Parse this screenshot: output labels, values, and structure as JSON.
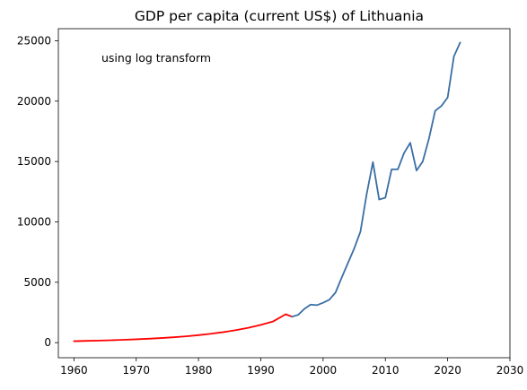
{
  "chart_data": {
    "type": "line",
    "title": "GDP per capita (current US$) of Lithuania",
    "annotation": "using log transform",
    "xlabel": "",
    "ylabel": "",
    "xlim": [
      1957.5,
      2030
    ],
    "ylim": [
      -1250,
      26000
    ],
    "x_ticks": [
      1960,
      1970,
      1980,
      1990,
      2000,
      2010,
      2020,
      2030
    ],
    "y_ticks": [
      0,
      5000,
      10000,
      15000,
      20000,
      25000
    ],
    "grid": false,
    "series": [
      {
        "role": "estimated",
        "color": "#ff0000",
        "x": [
          1960,
          1962,
          1964,
          1966,
          1968,
          1970,
          1972,
          1974,
          1976,
          1978,
          1980,
          1982,
          1984,
          1986,
          1988,
          1990,
          1992,
          1994,
          1995
        ],
        "y": [
          120,
          145,
          170,
          200,
          235,
          275,
          325,
          380,
          445,
          525,
          620,
          735,
          870,
          1030,
          1230,
          1470,
          1760,
          2350,
          2150
        ]
      },
      {
        "role": "actual",
        "color": "#3a6ea5",
        "x": [
          1995,
          1996,
          1997,
          1998,
          1999,
          2000,
          2001,
          2002,
          2003,
          2004,
          2005,
          2006,
          2007,
          2008,
          2009,
          2010,
          2011,
          2012,
          2013,
          2014,
          2015,
          2016,
          2017,
          2018,
          2019,
          2020,
          2021,
          2022
        ],
        "y": [
          2150,
          2300,
          2800,
          3150,
          3100,
          3300,
          3550,
          4150,
          5400,
          6600,
          7800,
          9200,
          12300,
          14950,
          11850,
          12000,
          14350,
          14350,
          15700,
          16550,
          14250,
          15000,
          16900,
          19200,
          19600,
          20300,
          23700,
          24850
        ]
      }
    ]
  }
}
